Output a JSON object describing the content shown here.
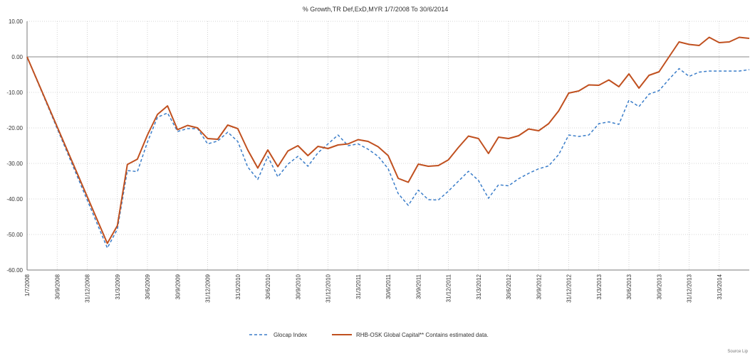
{
  "chart_data": {
    "type": "line",
    "title": "% Growth,TR Def,ExD,MYR 1/7/2008 To 30/6/2014",
    "xlabel": "",
    "ylabel": "",
    "ylim": [
      -60,
      10
    ],
    "yticks": [
      "10.00",
      "0.00",
      "-10.00",
      "-20.00",
      "-30.00",
      "-40.00",
      "-50.00",
      "-60.00"
    ],
    "ytick_values": [
      10,
      0,
      -10,
      -20,
      -30,
      -40,
      -50,
      -60
    ],
    "xticks": [
      "1/7/2008",
      "30/9/2008",
      "31/12/2008",
      "31/3/2009",
      "30/6/2009",
      "30/9/2009",
      "31/12/2009",
      "31/3/2010",
      "30/6/2010",
      "30/9/2010",
      "31/12/2010",
      "31/3/2011",
      "30/6/2011",
      "30/9/2011",
      "31/12/2011",
      "31/3/2012",
      "30/6/2012",
      "30/9/2012",
      "31/12/2012",
      "31/3/2013",
      "30/6/2013",
      "30/9/2013",
      "31/12/2013",
      "31/3/2014"
    ],
    "x_range_months": [
      0,
      72
    ],
    "grid": true,
    "legend_position": "bottom",
    "series": [
      {
        "name": "Glocap Index",
        "color": "#3a7dc9",
        "dashed": true,
        "x": [
          0,
          8,
          9,
          10,
          11,
          12,
          13,
          14,
          15,
          16,
          17,
          18,
          19,
          20,
          21,
          22,
          23,
          24,
          25,
          26,
          27,
          28,
          29,
          30,
          31,
          32,
          33,
          34,
          35,
          36,
          37,
          38,
          39,
          40,
          41,
          42,
          43,
          44,
          45,
          46,
          47,
          48,
          49,
          50,
          51,
          52,
          53,
          54,
          55,
          56,
          57,
          58,
          59,
          60,
          61,
          62,
          63,
          64,
          65,
          66,
          67,
          68,
          69,
          70,
          71,
          72
        ],
        "values": [
          0,
          -53.8,
          -48.5,
          -32,
          -32.3,
          -24,
          -17,
          -15.8,
          -21,
          -20.2,
          -20.2,
          -24.5,
          -23.7,
          -21.2,
          -23.8,
          -31,
          -34.5,
          -28,
          -33.8,
          -30.2,
          -28,
          -30.8,
          -27,
          -24.5,
          -22,
          -25,
          -24.5,
          -26,
          -28,
          -31.5,
          -38.5,
          -41.8,
          -37.5,
          -40.2,
          -40.3,
          -37.8,
          -35,
          -32.2,
          -34.8,
          -39.8,
          -36,
          -36.3,
          -34.3,
          -32.8,
          -31.5,
          -30.7,
          -27.5,
          -22,
          -22.4,
          -22,
          -18.8,
          -18.3,
          -19,
          -12.2,
          -14,
          -10.5,
          -9.5,
          -6.3,
          -3.3,
          -5.5,
          -4.3,
          -4,
          -4,
          -4,
          -4,
          -3.6
        ]
      },
      {
        "name": "RHB-OSK Global Capital*",
        "color": "#c0501f",
        "dashed": false,
        "x": [
          0,
          8,
          9,
          10,
          11,
          12,
          13,
          14,
          15,
          16,
          17,
          18,
          19,
          20,
          21,
          22,
          23,
          24,
          25,
          26,
          27,
          28,
          29,
          30,
          31,
          32,
          33,
          34,
          35,
          36,
          37,
          38,
          39,
          40,
          41,
          42,
          43,
          44,
          45,
          46,
          47,
          48,
          49,
          50,
          51,
          52,
          53,
          54,
          55,
          56,
          57,
          58,
          59,
          60,
          61,
          62,
          63,
          64,
          65,
          66,
          67,
          68,
          69,
          70,
          71,
          72
        ],
        "values": [
          0,
          -52.5,
          -47.5,
          -30.3,
          -28.8,
          -22,
          -16.2,
          -13.8,
          -20.5,
          -19.3,
          -20,
          -23,
          -23.2,
          -19.2,
          -20.2,
          -26.2,
          -31.3,
          -26.2,
          -30.9,
          -26.5,
          -25,
          -27.8,
          -25.2,
          -25.8,
          -24.8,
          -24.5,
          -23.3,
          -23.8,
          -25.3,
          -27.8,
          -34.2,
          -35.3,
          -30.2,
          -30.8,
          -30.6,
          -29,
          -25.5,
          -22.3,
          -23,
          -27.2,
          -22.6,
          -23,
          -22.2,
          -20.3,
          -20.8,
          -18.8,
          -15.2,
          -10.2,
          -9.6,
          -7.9,
          -8,
          -6.5,
          -8.4,
          -4.8,
          -8.8,
          -5.2,
          -4.2,
          0,
          4.2,
          3.5,
          3.2,
          5.5,
          4,
          4.2,
          5.5,
          5.2
        ]
      }
    ]
  },
  "legend": {
    "note": "* Contains estimated data."
  },
  "footer": {
    "source": "Source Lip"
  }
}
